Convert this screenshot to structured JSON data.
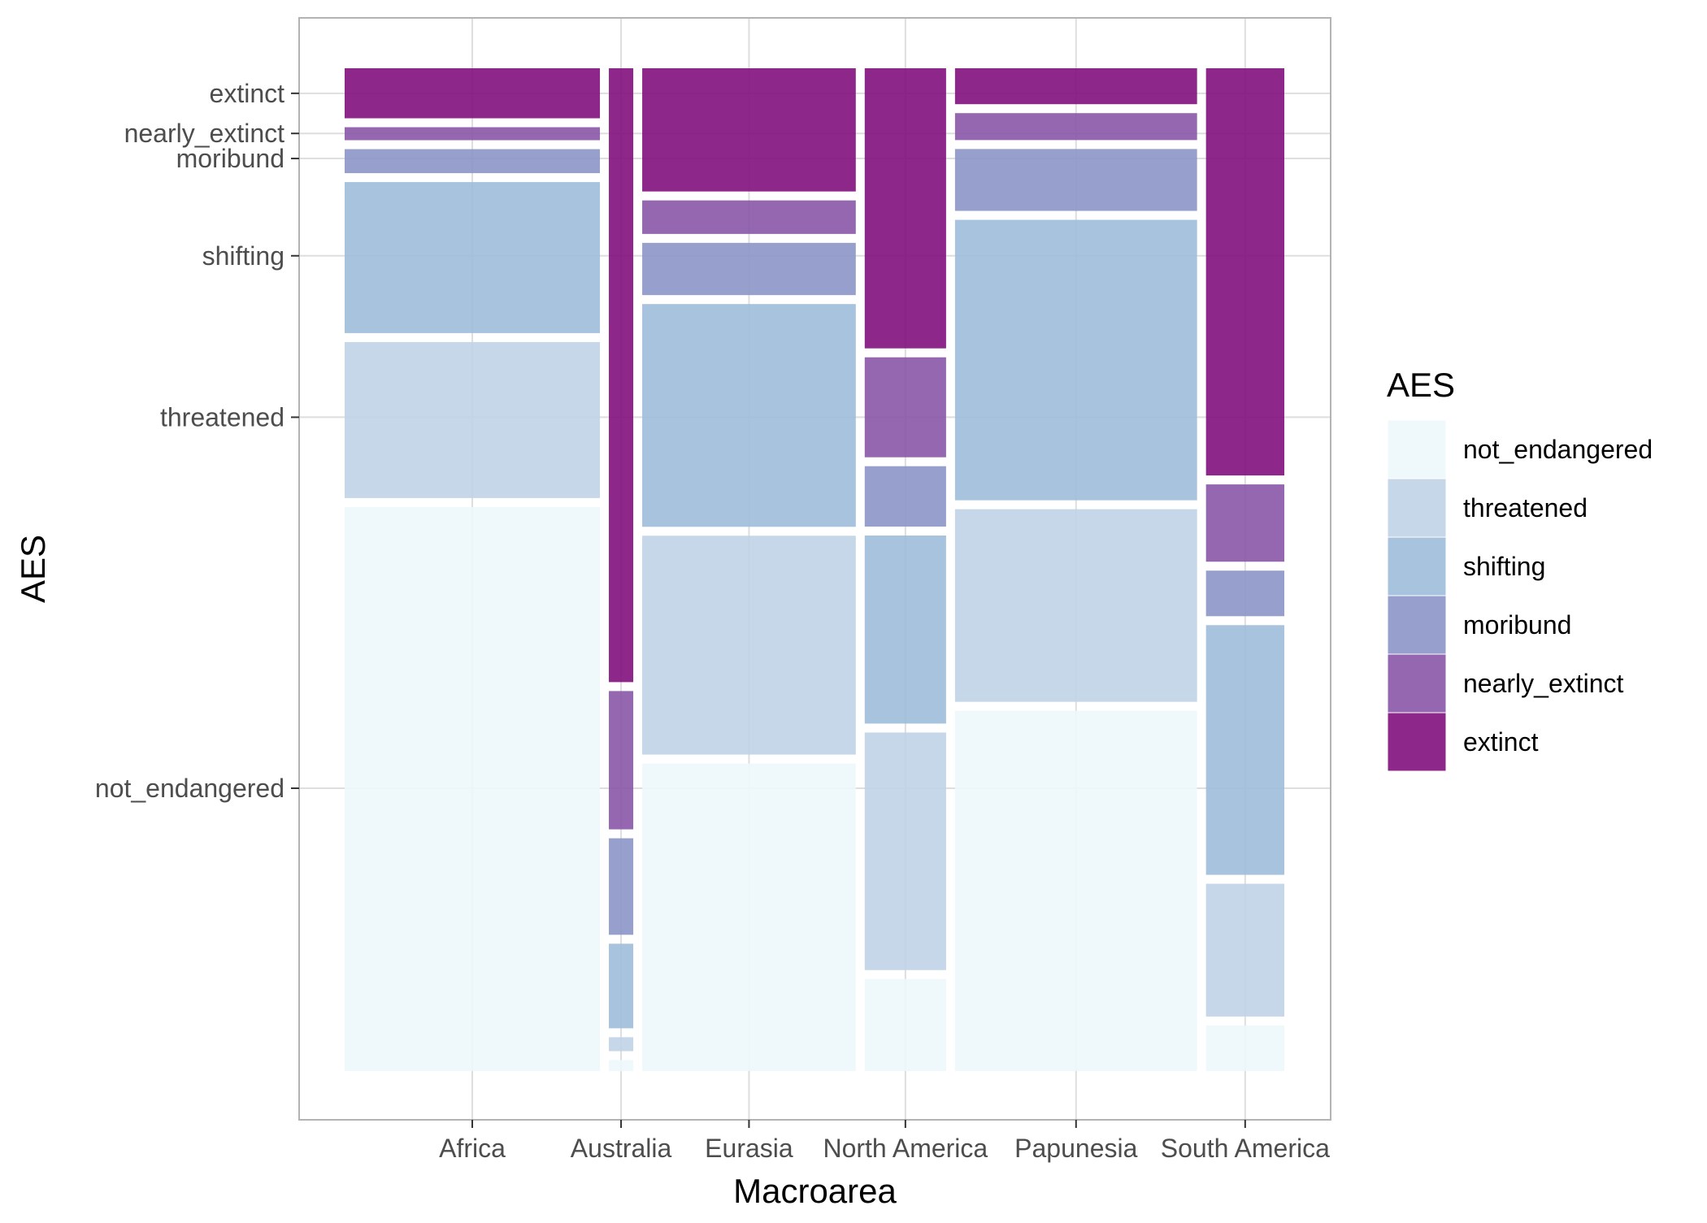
{
  "chart_data": {
    "type": "mosaic",
    "xlabel": "Macroarea",
    "ylabel": "AES",
    "grid": true,
    "legend": {
      "title": "AES",
      "position": "right",
      "entries": [
        "not_endangered",
        "threatened",
        "shifting",
        "moribund",
        "nearly_extinct",
        "extinct"
      ]
    },
    "levels": [
      "not_endangered",
      "threatened",
      "shifting",
      "moribund",
      "nearly_extinct",
      "extinct"
    ],
    "colors": {
      "not_endangered": "#EDF8FB",
      "threatened": "#BFD3E6",
      "shifting": "#9EBCDA",
      "moribund": "#8C96C6",
      "nearly_extinct": "#8856A7",
      "extinct": "#810F7C"
    },
    "categories": [
      "Africa",
      "Australia",
      "Eurasia",
      "North America",
      "Papunesia",
      "South America"
    ],
    "widths": [
      0.251,
      0.024,
      0.21,
      0.08,
      0.238,
      0.077
    ],
    "proportions": [
      [
        0.564,
        0.156,
        0.151,
        0.024,
        0.013,
        0.05
      ],
      [
        0.011,
        0.014,
        0.085,
        0.097,
        0.139,
        0.617
      ],
      [
        0.312,
        0.222,
        0.226,
        0.053,
        0.034,
        0.125
      ],
      [
        0.093,
        0.24,
        0.19,
        0.061,
        0.101,
        0.283
      ],
      [
        0.361,
        0.193,
        0.281,
        0.062,
        0.027,
        0.036
      ],
      [
        0.046,
        0.134,
        0.252,
        0.046,
        0.078,
        0.411
      ]
    ],
    "y_ticks": [
      {
        "label": "not_endangered",
        "value": 0.282
      },
      {
        "label": "threatened",
        "value": 0.652
      },
      {
        "label": "shifting",
        "value": 0.813
      },
      {
        "label": "moribund",
        "value": 0.91
      },
      {
        "label": "nearly_extinct",
        "value": 0.935
      },
      {
        "label": "extinct",
        "value": 0.975
      }
    ]
  }
}
